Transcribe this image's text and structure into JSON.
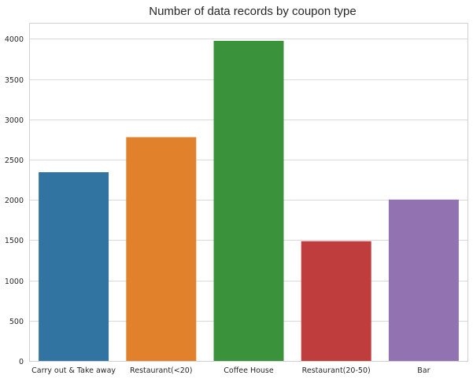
{
  "chart_data": {
    "type": "bar",
    "title": "Number of data records by coupon type",
    "xlabel": "",
    "ylabel": "",
    "categories": [
      "Carry out & Take away",
      "Restaurant(<20)",
      "Coffee House",
      "Restaurant(20-50)",
      "Bar"
    ],
    "values": [
      2344,
      2779,
      3976,
      1487,
      2004
    ],
    "colors": [
      "#3274a1",
      "#e1812c",
      "#3a923a",
      "#c03d3e",
      "#9372b2"
    ],
    "ylim": [
      0,
      4190
    ],
    "yticks": [
      0,
      500,
      1000,
      1500,
      2000,
      2500,
      3000,
      3500,
      4000
    ],
    "grid": "horizontal",
    "legend": "none"
  }
}
